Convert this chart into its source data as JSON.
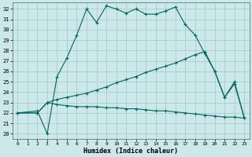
{
  "xlabel": "Humidex (Indice chaleur)",
  "background_color": "#cce8e8",
  "grid_color": "#aacccc",
  "line_color": "#006666",
  "xlim": [
    -0.5,
    23.5
  ],
  "ylim": [
    19.5,
    32.6
  ],
  "xticks": [
    0,
    1,
    2,
    3,
    4,
    5,
    6,
    7,
    8,
    9,
    10,
    11,
    12,
    13,
    14,
    15,
    16,
    17,
    18,
    19,
    20,
    21,
    22,
    23
  ],
  "yticks": [
    20,
    21,
    22,
    23,
    24,
    25,
    26,
    27,
    28,
    29,
    30,
    31,
    32
  ],
  "line3_x": [
    0,
    2,
    3,
    4,
    5,
    6,
    7,
    8,
    9,
    10,
    11,
    12,
    13,
    14,
    15,
    16,
    17,
    18,
    19,
    20,
    21,
    22,
    23
  ],
  "line3_y": [
    22.0,
    22.2,
    20.0,
    25.5,
    27.3,
    29.5,
    32.0,
    30.7,
    32.3,
    32.0,
    31.6,
    32.0,
    31.5,
    31.5,
    31.8,
    32.2,
    30.5,
    29.5,
    27.7,
    26.0,
    23.5,
    24.8,
    21.5
  ],
  "line2_x": [
    0,
    2,
    3,
    4,
    5,
    6,
    7,
    8,
    9,
    10,
    11,
    12,
    13,
    14,
    15,
    16,
    17,
    18,
    19,
    20,
    21,
    22,
    23
  ],
  "line2_y": [
    22.0,
    22.0,
    23.0,
    23.3,
    23.5,
    23.7,
    23.9,
    24.2,
    24.5,
    24.9,
    25.2,
    25.5,
    25.9,
    26.2,
    26.5,
    26.8,
    27.2,
    27.6,
    27.9,
    26.0,
    23.5,
    25.0,
    21.5
  ],
  "line1_x": [
    0,
    2,
    3,
    4,
    5,
    6,
    7,
    8,
    9,
    10,
    11,
    12,
    13,
    14,
    15,
    16,
    17,
    18,
    19,
    20,
    21,
    22,
    23
  ],
  "line1_y": [
    22.0,
    22.0,
    23.0,
    22.8,
    22.7,
    22.6,
    22.6,
    22.6,
    22.5,
    22.5,
    22.4,
    22.4,
    22.3,
    22.2,
    22.2,
    22.1,
    22.0,
    21.9,
    21.8,
    21.7,
    21.6,
    21.6,
    21.5
  ]
}
